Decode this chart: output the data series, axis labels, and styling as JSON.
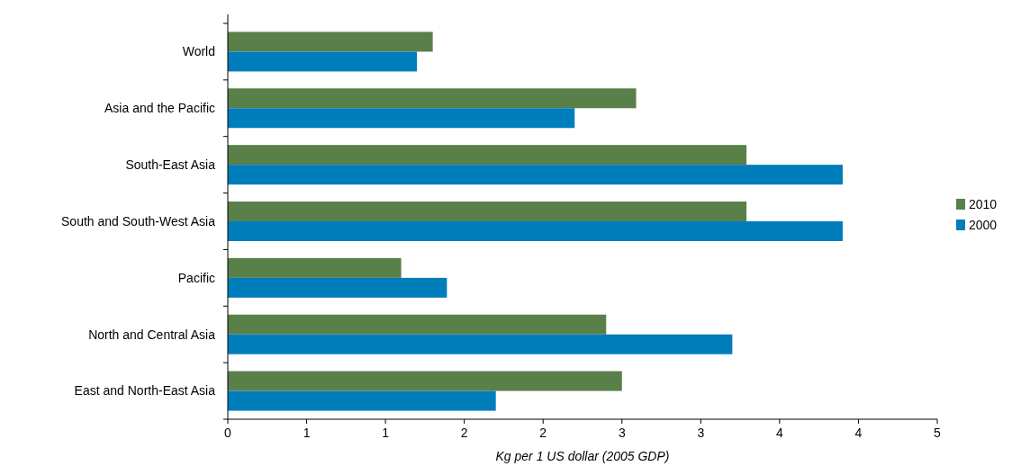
{
  "chart_data": {
    "type": "bar",
    "orientation": "horizontal",
    "xlabel": "Kg per 1 US dollar (2005 GDP)",
    "categories": [
      "World",
      "Asia and the Pacific",
      "South-East Asia",
      "South and South-West Asia",
      "Pacific",
      "North and Central Asia",
      "East and North-East Asia"
    ],
    "series": [
      {
        "name": "2010",
        "color": "#5a8049",
        "values": [
          1.3,
          2.59,
          3.29,
          3.29,
          1.1,
          2.4,
          2.5
        ]
      },
      {
        "name": "2000",
        "color": "#007dbb",
        "values": [
          1.2,
          2.2,
          3.9,
          3.9,
          1.39,
          3.2,
          1.7
        ]
      }
    ],
    "xlim": [
      0,
      4.5
    ],
    "xticks": [
      0,
      {
        "value": 0.5,
        "label": "1"
      },
      1,
      {
        "value": 1.5,
        "label": "2"
      },
      2,
      {
        "value": 2.5,
        "label": "3"
      },
      3,
      {
        "value": 3.5,
        "label": "4"
      },
      4,
      {
        "value": 4.5,
        "label": "5"
      }
    ],
    "grid": false,
    "legend": "right"
  }
}
